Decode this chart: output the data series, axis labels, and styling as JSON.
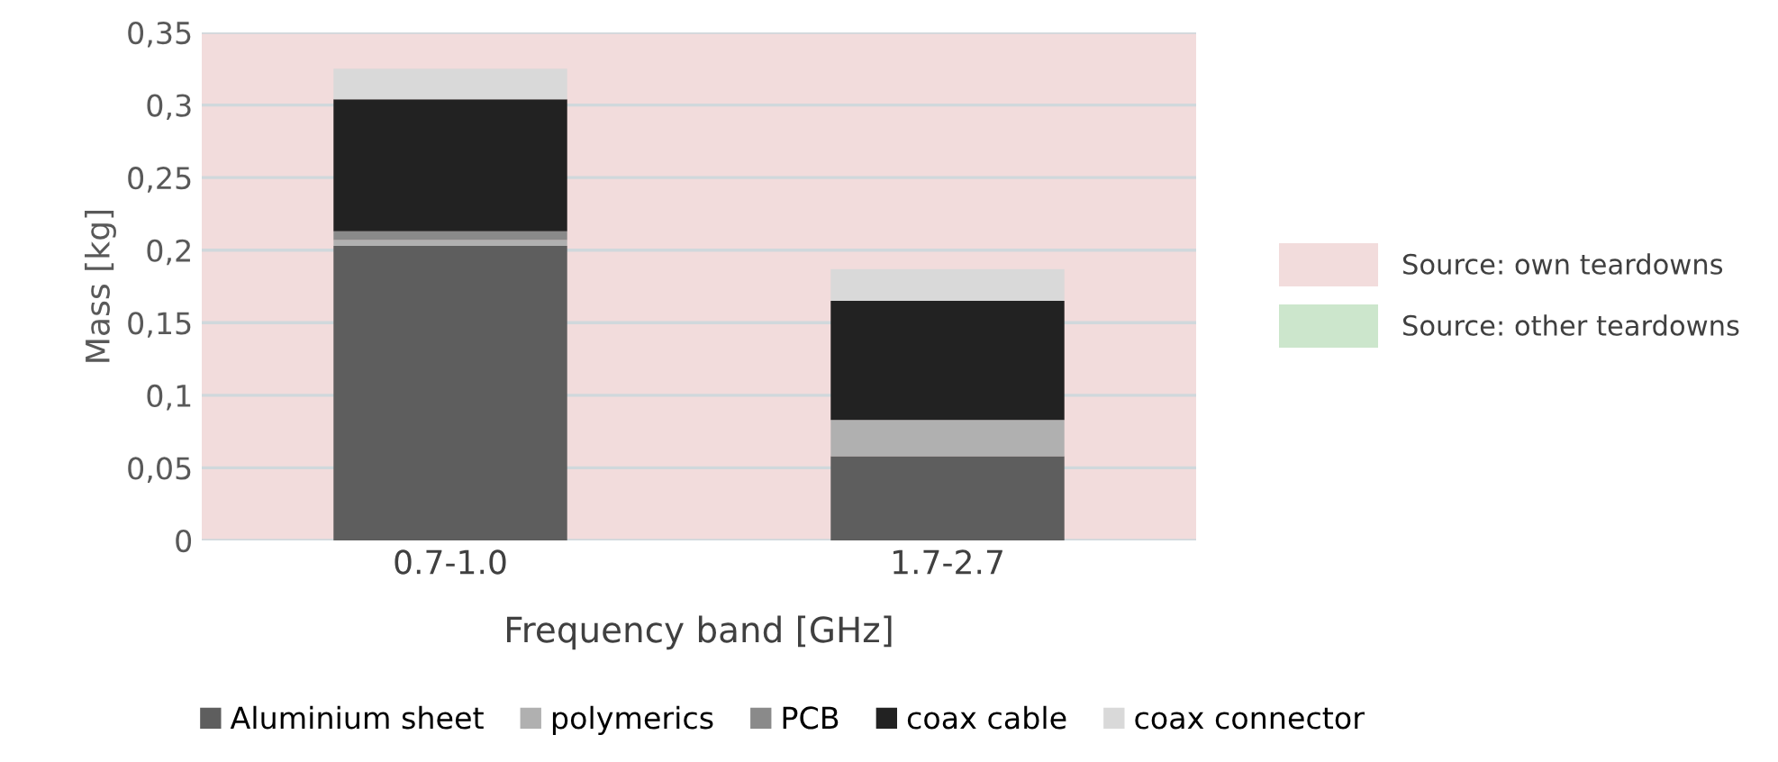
{
  "chart_data": {
    "type": "bar",
    "stacked": true,
    "xlabel": "Frequency band [GHz]",
    "ylabel": "Mass [kg]",
    "categories": [
      "0.7-1.0",
      "1.7-2.7"
    ],
    "series": [
      {
        "name": "Aluminium sheet",
        "color": "#5e5e5e",
        "values": [
          0.203,
          0.058
        ]
      },
      {
        "name": "polymerics",
        "color": "#b0b0b0",
        "values": [
          0.004,
          0.025
        ]
      },
      {
        "name": "PCB",
        "color": "#8a8a8a",
        "values": [
          0.006,
          0
        ]
      },
      {
        "name": "coax cable",
        "color": "#222222",
        "values": [
          0.091,
          0.082
        ]
      },
      {
        "name": "coax connector",
        "color": "#d9d9d9",
        "values": [
          0.021,
          0.022
        ]
      }
    ],
    "ylim": [
      0,
      0.35
    ],
    "yticks": [
      {
        "value": 0,
        "label": "0"
      },
      {
        "value": 0.05,
        "label": "0,05"
      },
      {
        "value": 0.1,
        "label": "0,1"
      },
      {
        "value": 0.15,
        "label": "0,15"
      },
      {
        "value": 0.2,
        "label": "0,2"
      },
      {
        "value": 0.25,
        "label": "0,25"
      },
      {
        "value": 0.3,
        "label": "0,3"
      },
      {
        "value": 0.35,
        "label": "0,35"
      }
    ],
    "grid": "y",
    "legend": "bottom",
    "bands": [
      {
        "axis": "y",
        "from": 0,
        "to": 0.35,
        "color": "#f2dcdc"
      }
    ],
    "annotations": [
      "Source: own teardowns",
      "Source: other teardowns"
    ]
  }
}
